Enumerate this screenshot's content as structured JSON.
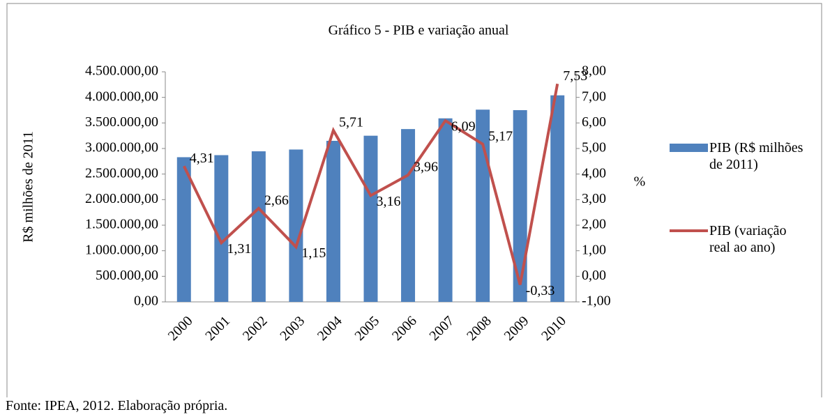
{
  "chart_data": {
    "type": "bar-line",
    "title": "Gráfico 5 - PIB e variação anual",
    "ylabel": "R$ milhões de 2011",
    "y2label": "%",
    "categories": [
      "2000",
      "2001",
      "2002",
      "2003",
      "2004",
      "2005",
      "2006",
      "2007",
      "2008",
      "2009",
      "2010"
    ],
    "series": [
      {
        "name": "PIB (R$ milhões de 2011)",
        "type": "bar",
        "color": "#4f81bd",
        "axis": "y",
        "values": [
          2830000,
          2870000,
          2945000,
          2980000,
          3150000,
          3250000,
          3380000,
          3590000,
          3760000,
          3750000,
          4040000
        ]
      },
      {
        "name": "PIB (variação real ao ano)",
        "type": "line",
        "color": "#c0504d",
        "axis": "y2",
        "values": [
          4.31,
          1.31,
          2.66,
          1.15,
          5.71,
          3.16,
          3.96,
          6.09,
          5.17,
          -0.33,
          7.53
        ],
        "value_labels": [
          "4,31",
          "1,31",
          "2,66",
          "1,15",
          "5,71",
          "3,16",
          "3,96",
          "6,09",
          "5,17",
          "-0,33",
          "7,53"
        ]
      }
    ],
    "ylim": [
      0,
      4500000
    ],
    "yticks": [
      {
        "value": 0,
        "label": "0,00"
      },
      {
        "value": 500000,
        "label": "500.000,00"
      },
      {
        "value": 1000000,
        "label": "1.000.000,00"
      },
      {
        "value": 1500000,
        "label": "1.500.000,00"
      },
      {
        "value": 2000000,
        "label": "2.000.000,00"
      },
      {
        "value": 2500000,
        "label": "2.500.000,00"
      },
      {
        "value": 3000000,
        "label": "3.000.000,00"
      },
      {
        "value": 3500000,
        "label": "3.500.000,00"
      },
      {
        "value": 4000000,
        "label": "4.000.000,00"
      },
      {
        "value": 4500000,
        "label": "4.500.000,00"
      }
    ],
    "y2lim": [
      -1,
      8
    ],
    "y2ticks": [
      {
        "value": -1,
        "label": "-1,00"
      },
      {
        "value": 0,
        "label": "0,00"
      },
      {
        "value": 1,
        "label": "1,00"
      },
      {
        "value": 2,
        "label": "2,00"
      },
      {
        "value": 3,
        "label": "3,00"
      },
      {
        "value": 4,
        "label": "4,00"
      },
      {
        "value": 5,
        "label": "5,00"
      },
      {
        "value": 6,
        "label": "6,00"
      },
      {
        "value": 7,
        "label": "7,00"
      },
      {
        "value": 8,
        "label": "8,00"
      }
    ],
    "legend": "right",
    "source": "Fonte: IPEA, 2012. Elaboração própria."
  }
}
